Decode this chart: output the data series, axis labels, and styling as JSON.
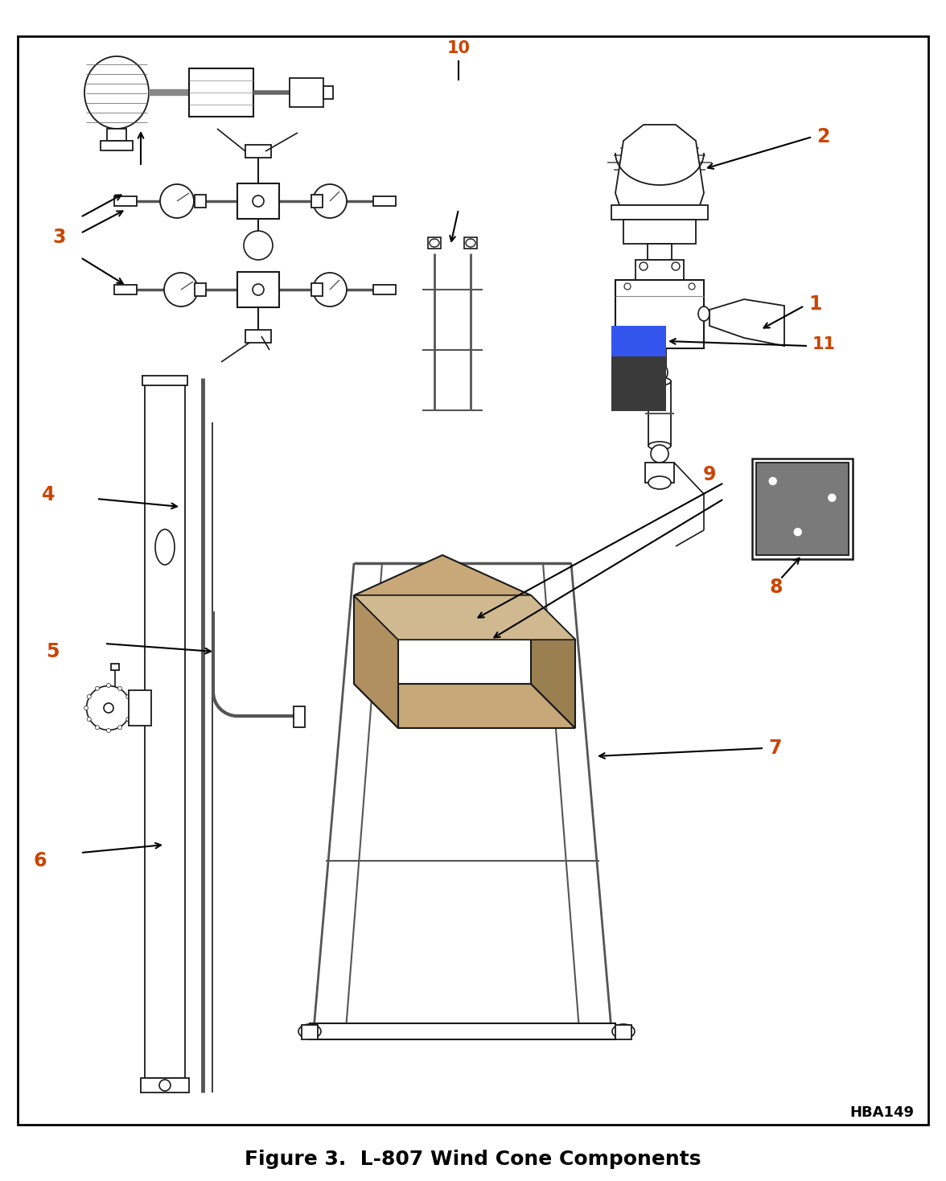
{
  "title": "Figure 3.  L-807 Wind Cone Components",
  "title_fontsize": 18,
  "border_color": "#000000",
  "background_color": "#ffffff",
  "label_color": "#CC4400",
  "hba_label": "HBA149",
  "blue_color": "#3355EE",
  "dark_gray": "#3A3A3A",
  "mid_gray": "#888888",
  "plate_gray": "#7A7A7A",
  "box_tan": "#C8A878",
  "box_tan2": "#B09060",
  "box_tan3": "#9A8050",
  "line_color": "#1A1A1A",
  "fig_w": 1176,
  "fig_h": 1468
}
